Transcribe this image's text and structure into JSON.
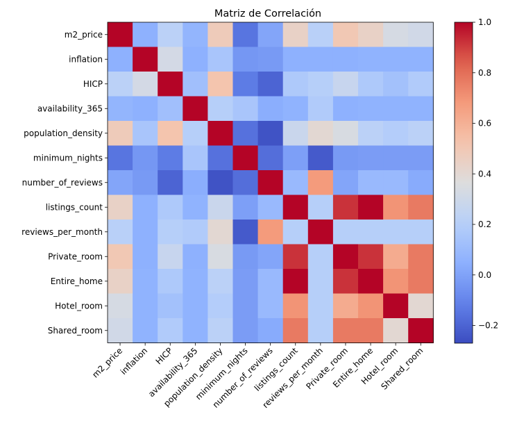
{
  "chart_data": {
    "type": "heatmap",
    "title": "Matriz de Correlación",
    "xlabel": "",
    "ylabel": "",
    "colormap": "coolwarm",
    "vmin": -0.27,
    "vmax": 1.0,
    "colorbar_ticks": [
      1.0,
      0.8,
      0.6,
      0.4,
      0.2,
      0.0,
      -0.2
    ],
    "colorbar_tick_labels": [
      "1.0",
      "0.8",
      "0.6",
      "0.4",
      "0.2",
      "0.0",
      "−0.2"
    ],
    "row_labels": [
      "m2_price",
      "inflation",
      "HICP",
      "availability_365",
      "population_density",
      "minimum_nights",
      "number_of_reviews",
      "listings_count",
      "reviews_per_month",
      "Private_room",
      "Entire_home",
      "Hotel_room",
      "Shared_room"
    ],
    "col_labels": [
      "m2_price",
      "inflation",
      "HICP",
      "availability_365",
      "population_density",
      "minimum_nights",
      "number_of_reviews",
      "listings_count",
      "reviews_per_month",
      "Private_room",
      "Entire_home",
      "Hotel_room",
      "Shared_room"
    ],
    "matrix": [
      [
        1.0,
        0.05,
        0.22,
        0.07,
        0.48,
        -0.15,
        0.01,
        0.44,
        0.21,
        0.5,
        0.44,
        0.33,
        0.31
      ],
      [
        0.05,
        1.0,
        0.32,
        0.05,
        0.15,
        -0.04,
        -0.03,
        0.05,
        0.05,
        0.05,
        0.06,
        0.06,
        0.06
      ],
      [
        0.22,
        0.32,
        1.0,
        0.12,
        0.52,
        -0.13,
        -0.2,
        0.17,
        0.2,
        0.27,
        0.17,
        0.13,
        0.18
      ],
      [
        0.07,
        0.05,
        0.12,
        1.0,
        0.2,
        0.15,
        0.04,
        0.06,
        0.18,
        0.05,
        0.06,
        0.06,
        0.06
      ],
      [
        0.48,
        0.15,
        0.52,
        0.2,
        1.0,
        -0.16,
        -0.25,
        0.28,
        0.4,
        0.34,
        0.22,
        0.19,
        0.22
      ],
      [
        -0.15,
        -0.04,
        -0.13,
        0.15,
        -0.16,
        1.0,
        -0.17,
        -0.01,
        -0.23,
        -0.03,
        -0.02,
        -0.02,
        -0.02
      ],
      [
        0.01,
        -0.03,
        -0.2,
        0.04,
        -0.25,
        -0.17,
        1.0,
        0.09,
        0.68,
        0.01,
        0.09,
        0.09,
        0.03
      ],
      [
        0.44,
        0.05,
        0.17,
        0.06,
        0.28,
        -0.01,
        0.09,
        1.0,
        0.2,
        0.92,
        1.0,
        0.7,
        0.77
      ],
      [
        0.21,
        0.05,
        0.2,
        0.18,
        0.4,
        -0.23,
        0.68,
        0.2,
        1.0,
        0.2,
        0.2,
        0.2,
        0.2
      ],
      [
        0.5,
        0.05,
        0.27,
        0.05,
        0.34,
        -0.03,
        0.01,
        0.92,
        0.2,
        1.0,
        0.92,
        0.62,
        0.77
      ],
      [
        0.44,
        0.06,
        0.17,
        0.06,
        0.22,
        -0.02,
        0.09,
        1.0,
        0.2,
        0.92,
        1.0,
        0.7,
        0.77
      ],
      [
        0.33,
        0.06,
        0.13,
        0.06,
        0.19,
        -0.02,
        0.09,
        0.7,
        0.2,
        0.62,
        0.7,
        1.0,
        0.4
      ],
      [
        0.31,
        0.06,
        0.18,
        0.06,
        0.22,
        -0.02,
        0.03,
        0.77,
        0.2,
        0.77,
        0.77,
        0.4,
        1.0
      ]
    ]
  }
}
